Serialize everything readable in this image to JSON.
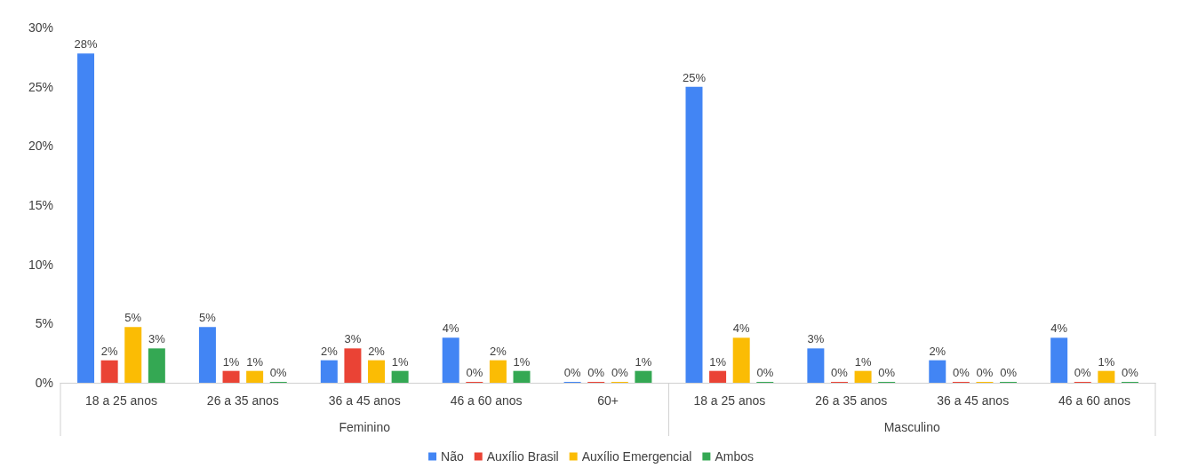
{
  "chart_data": {
    "type": "bar",
    "categories": [
      "18 a 25 anos",
      "26 a 35 anos",
      "36 a 45 anos",
      "46 a 60 anos",
      "60+",
      "18 a 25 anos",
      "26 a 35 anos",
      "36 a 45 anos",
      "46 a 60 anos"
    ],
    "annotations": [
      "Feminino",
      "Masculino"
    ],
    "series": [
      {
        "name": "Não",
        "color": "#4285f4",
        "values": [
          27.8,
          4.7,
          1.9,
          3.8,
          0,
          25,
          2.9,
          1.9,
          3.8
        ],
        "value_labels": [
          "28%",
          "5%",
          "2%",
          "4%",
          "0%",
          "25%",
          "3%",
          "2%",
          "4%"
        ]
      },
      {
        "name": "Auxílio Brasil",
        "color": "#ea4335",
        "values": [
          1.9,
          1,
          2.9,
          0,
          0,
          1,
          0,
          0,
          0
        ],
        "value_labels": [
          "2%",
          "1%",
          "3%",
          "0%",
          "0%",
          "1%",
          "0%",
          "0%",
          "0%"
        ]
      },
      {
        "name": "Auxílio Emergencial",
        "color": "#fbbc04",
        "values": [
          4.7,
          1,
          1.9,
          1.9,
          0,
          3.8,
          1,
          0,
          1
        ],
        "value_labels": [
          "5%",
          "1%",
          "2%",
          "2%",
          "0%",
          "4%",
          "1%",
          "0%",
          "1%"
        ]
      },
      {
        "name": "Ambos",
        "color": "#34a853",
        "values": [
          2.9,
          0,
          1,
          1,
          1,
          0,
          0,
          0,
          0
        ],
        "value_labels": [
          "3%",
          "0%",
          "1%",
          "1%",
          "1%",
          "0%",
          "0%",
          "0%",
          "0%"
        ]
      }
    ],
    "ylim": [
      0,
      30
    ],
    "yticks": [
      {
        "value": 0,
        "label": "0%"
      },
      {
        "value": 5,
        "label": "5%"
      },
      {
        "value": 10,
        "label": "10%"
      },
      {
        "value": 15,
        "label": "15%"
      },
      {
        "value": 20,
        "label": "20%"
      },
      {
        "value": 25,
        "label": "25%"
      },
      {
        "value": 30,
        "label": "30%"
      }
    ],
    "grid": false,
    "legend": "bottom"
  }
}
